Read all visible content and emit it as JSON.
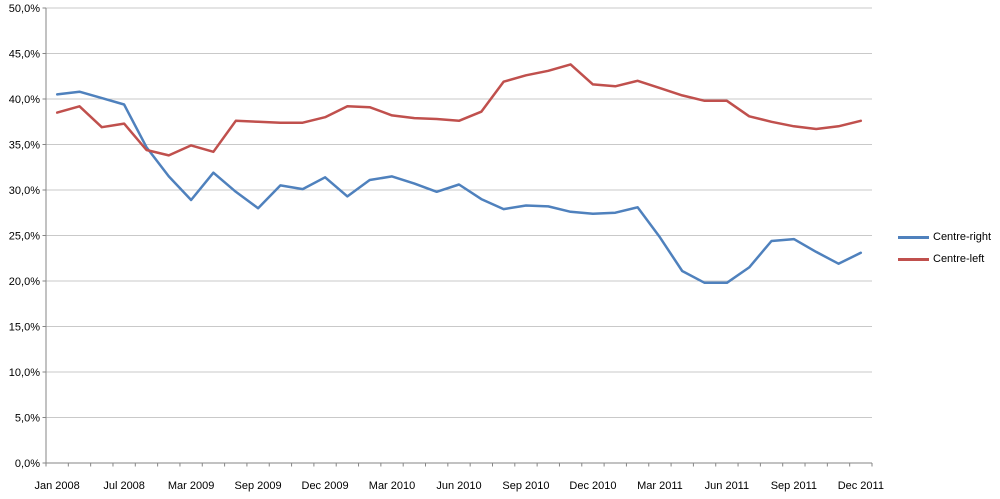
{
  "chart_data": {
    "type": "line",
    "title": "",
    "xlabel": "",
    "ylabel": "",
    "n_points": 37,
    "x_tick_labels": [
      "Jan 2008",
      "Jul 2008",
      "Mar 2009",
      "Sep 2009",
      "Dec 2009",
      "Mar 2010",
      "Jun 2010",
      "Sep 2010",
      "Dec 2010",
      "Mar 2011",
      "Jun 2011",
      "Sep 2011",
      "Dec 2011"
    ],
    "x_tick_indices": [
      0,
      3,
      6,
      9,
      12,
      15,
      18,
      21,
      24,
      27,
      30,
      33,
      36
    ],
    "y_axis": {
      "min": 0,
      "max": 50,
      "step": 5,
      "tick_labels": [
        "0,0%",
        "5,0%",
        "10,0%",
        "15,0%",
        "20,0%",
        "25,0%",
        "30,0%",
        "35,0%",
        "40,0%",
        "45,0%",
        "50,0%"
      ]
    },
    "grid": true,
    "legend_position": "right",
    "series": [
      {
        "name": "Centre-right",
        "color": "#4F81BD",
        "values": [
          40.5,
          40.8,
          40.1,
          39.4,
          34.7,
          31.5,
          28.9,
          31.9,
          29.8,
          28.0,
          30.5,
          30.1,
          31.4,
          29.3,
          31.1,
          31.5,
          30.7,
          29.8,
          30.6,
          29.0,
          27.9,
          28.3,
          28.2,
          27.6,
          27.4,
          27.5,
          28.1,
          24.8,
          21.1,
          19.8,
          19.8,
          21.5,
          24.4,
          24.6,
          23.2,
          21.9,
          23.1
        ]
      },
      {
        "name": "Centre-left",
        "color": "#C0504D",
        "values": [
          38.5,
          39.2,
          36.9,
          37.3,
          34.4,
          33.8,
          34.9,
          34.2,
          37.6,
          37.5,
          37.4,
          37.4,
          38.0,
          39.2,
          39.1,
          38.2,
          37.9,
          37.8,
          37.6,
          38.6,
          41.9,
          42.6,
          43.1,
          43.8,
          41.6,
          41.4,
          42.0,
          41.2,
          40.4,
          39.8,
          39.8,
          38.1,
          37.5,
          37.0,
          36.7,
          37.0,
          37.6
        ]
      }
    ]
  },
  "style": {
    "gridline_color": "#C9C9C9",
    "axis_color": "#868686",
    "label_color": "#000000",
    "background": "#FFFFFF"
  }
}
